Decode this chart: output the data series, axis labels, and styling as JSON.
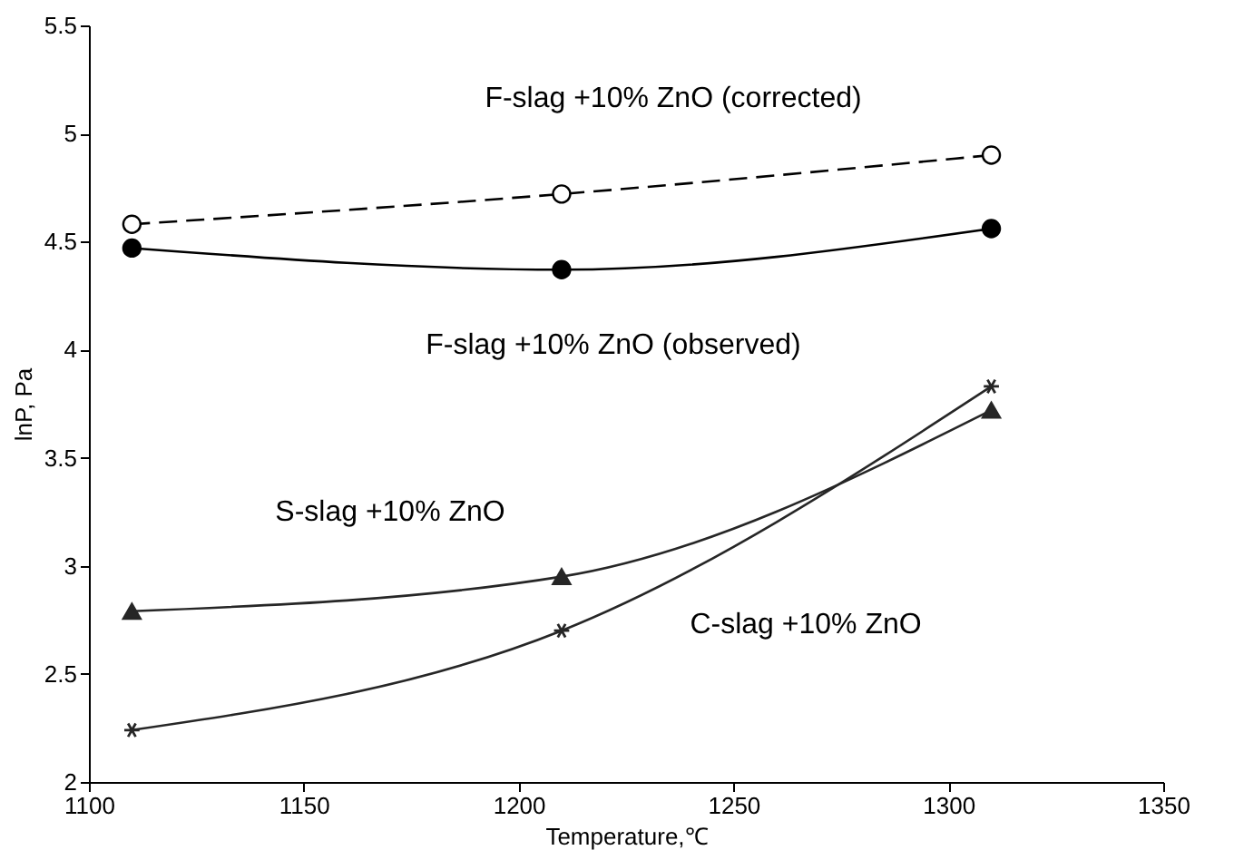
{
  "chart_data": {
    "type": "line",
    "xlabel": "Temperature,℃",
    "ylabel": "lnP, Pa",
    "xlim": [
      1100,
      1350
    ],
    "xticks": [
      1100,
      1150,
      1200,
      1250,
      1300,
      1350
    ],
    "ylim": [
      2,
      5.5
    ],
    "yticks": [
      2,
      2.5,
      3,
      3.5,
      4,
      4.5,
      5,
      5.5
    ],
    "grid": false,
    "x": [
      1110,
      1210,
      1310
    ],
    "series": [
      {
        "name": "F-slag +10% ZnO (corrected)",
        "color": "#000000",
        "values": [
          4.58,
          4.72,
          4.9
        ],
        "marker": "circle",
        "line_style": "dashed"
      },
      {
        "name": "F-slag +10% ZnO (observed)",
        "color": "#000000",
        "values": [
          4.47,
          4.37,
          4.56
        ],
        "marker": "circle",
        "line_style": "solid"
      },
      {
        "name": "S-slag +10% ZnO",
        "color": "#262626",
        "values": [
          2.79,
          2.95,
          3.72
        ],
        "marker": "triangle",
        "line_style": "solid"
      },
      {
        "name": "C-slag +10% ZnO",
        "color": "#262626",
        "values": [
          2.24,
          2.7,
          3.83
        ],
        "marker": "cross",
        "line_style": "solid"
      }
    ]
  }
}
